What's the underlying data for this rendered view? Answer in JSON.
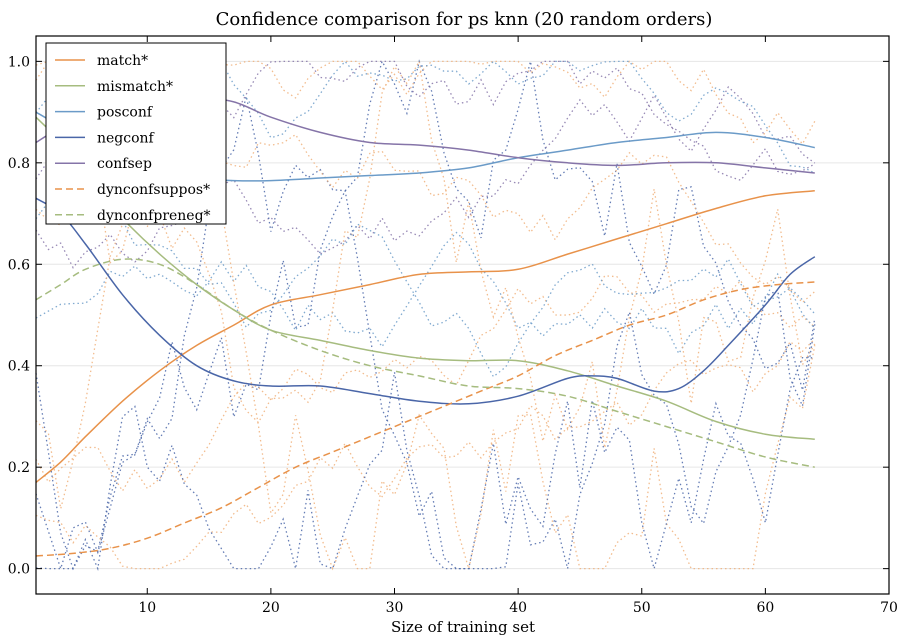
{
  "chart_data": {
    "type": "line",
    "title": "Confidence comparison for ps knn (20 random orders)",
    "xlabel": "Size of training set",
    "ylabel": "",
    "xlim": [
      1,
      70
    ],
    "ylim": [
      -0.05,
      1.05
    ],
    "xticks": [
      10,
      20,
      30,
      40,
      50,
      60,
      70
    ],
    "yticks": [
      0.0,
      0.2,
      0.4,
      0.6,
      0.8,
      1.0
    ],
    "grid": "horizontal",
    "legend_position": "top-left",
    "series": [
      {
        "name": "match*",
        "color": "#E8924A",
        "style": "solid",
        "x": [
          1,
          3,
          5,
          8,
          11,
          14,
          17,
          20,
          24,
          28,
          32,
          36,
          40,
          44,
          48,
          52,
          56,
          60,
          64
        ],
        "y": [
          0.17,
          0.21,
          0.26,
          0.33,
          0.39,
          0.44,
          0.48,
          0.52,
          0.54,
          0.56,
          0.58,
          0.585,
          0.59,
          0.62,
          0.65,
          0.68,
          0.71,
          0.735,
          0.745
        ]
      },
      {
        "name": "mismatch*",
        "color": "#A6BC7F",
        "style": "solid",
        "x": [
          1,
          3,
          5,
          8,
          11,
          14,
          17,
          20,
          24,
          28,
          32,
          36,
          40,
          44,
          48,
          52,
          56,
          60,
          64
        ],
        "y": [
          0.89,
          0.84,
          0.77,
          0.69,
          0.62,
          0.56,
          0.51,
          0.47,
          0.45,
          0.43,
          0.415,
          0.41,
          0.41,
          0.39,
          0.36,
          0.33,
          0.29,
          0.265,
          0.255
        ]
      },
      {
        "name": "posconf",
        "color": "#6B9BC8",
        "style": "solid",
        "x": [
          1,
          3,
          5,
          8,
          11,
          14,
          17,
          20,
          24,
          28,
          32,
          36,
          40,
          44,
          48,
          52,
          56,
          60,
          64
        ],
        "y": [
          0.9,
          0.87,
          0.83,
          0.8,
          0.78,
          0.77,
          0.765,
          0.765,
          0.77,
          0.775,
          0.78,
          0.79,
          0.81,
          0.825,
          0.84,
          0.85,
          0.86,
          0.85,
          0.83
        ]
      },
      {
        "name": "negconf",
        "color": "#4A66A8",
        "style": "solid",
        "x": [
          1,
          3,
          5,
          8,
          11,
          14,
          17,
          20,
          24,
          28,
          32,
          36,
          40,
          44,
          46,
          48,
          51,
          53,
          55,
          57,
          60,
          62,
          64
        ],
        "y": [
          0.73,
          0.7,
          0.64,
          0.54,
          0.46,
          0.4,
          0.37,
          0.36,
          0.36,
          0.345,
          0.33,
          0.325,
          0.34,
          0.375,
          0.38,
          0.375,
          0.35,
          0.355,
          0.39,
          0.44,
          0.52,
          0.58,
          0.615
        ]
      },
      {
        "name": "confsep",
        "color": "#8574A8",
        "style": "solid",
        "x": [
          1,
          3,
          5,
          8,
          11,
          14,
          17,
          20,
          24,
          28,
          32,
          36,
          40,
          44,
          48,
          52,
          56,
          60,
          64
        ],
        "y": [
          0.84,
          0.87,
          0.89,
          0.92,
          0.93,
          0.93,
          0.92,
          0.89,
          0.86,
          0.84,
          0.835,
          0.825,
          0.81,
          0.8,
          0.795,
          0.8,
          0.8,
          0.79,
          0.78
        ]
      },
      {
        "name": "dynconfsuppos*",
        "color": "#E8924A",
        "style": "dashed",
        "x": [
          1,
          4,
          7,
          10,
          13,
          16,
          19,
          22,
          25,
          28,
          31,
          34,
          37,
          40,
          43,
          46,
          49,
          52,
          55,
          58,
          61,
          64
        ],
        "y": [
          0.025,
          0.03,
          0.04,
          0.06,
          0.09,
          0.12,
          0.16,
          0.2,
          0.23,
          0.26,
          0.29,
          0.32,
          0.35,
          0.38,
          0.42,
          0.45,
          0.48,
          0.5,
          0.53,
          0.55,
          0.56,
          0.565
        ]
      },
      {
        "name": "dynconfpreneg*",
        "color": "#A6BC7F",
        "style": "dashed",
        "x": [
          1,
          3,
          5,
          8,
          11,
          14,
          17,
          20,
          24,
          28,
          32,
          36,
          40,
          44,
          48,
          52,
          56,
          60,
          64
        ],
        "y": [
          0.53,
          0.56,
          0.59,
          0.61,
          0.6,
          0.56,
          0.51,
          0.47,
          0.43,
          0.4,
          0.38,
          0.36,
          0.355,
          0.34,
          0.31,
          0.28,
          0.25,
          0.22,
          0.2
        ]
      }
    ]
  }
}
